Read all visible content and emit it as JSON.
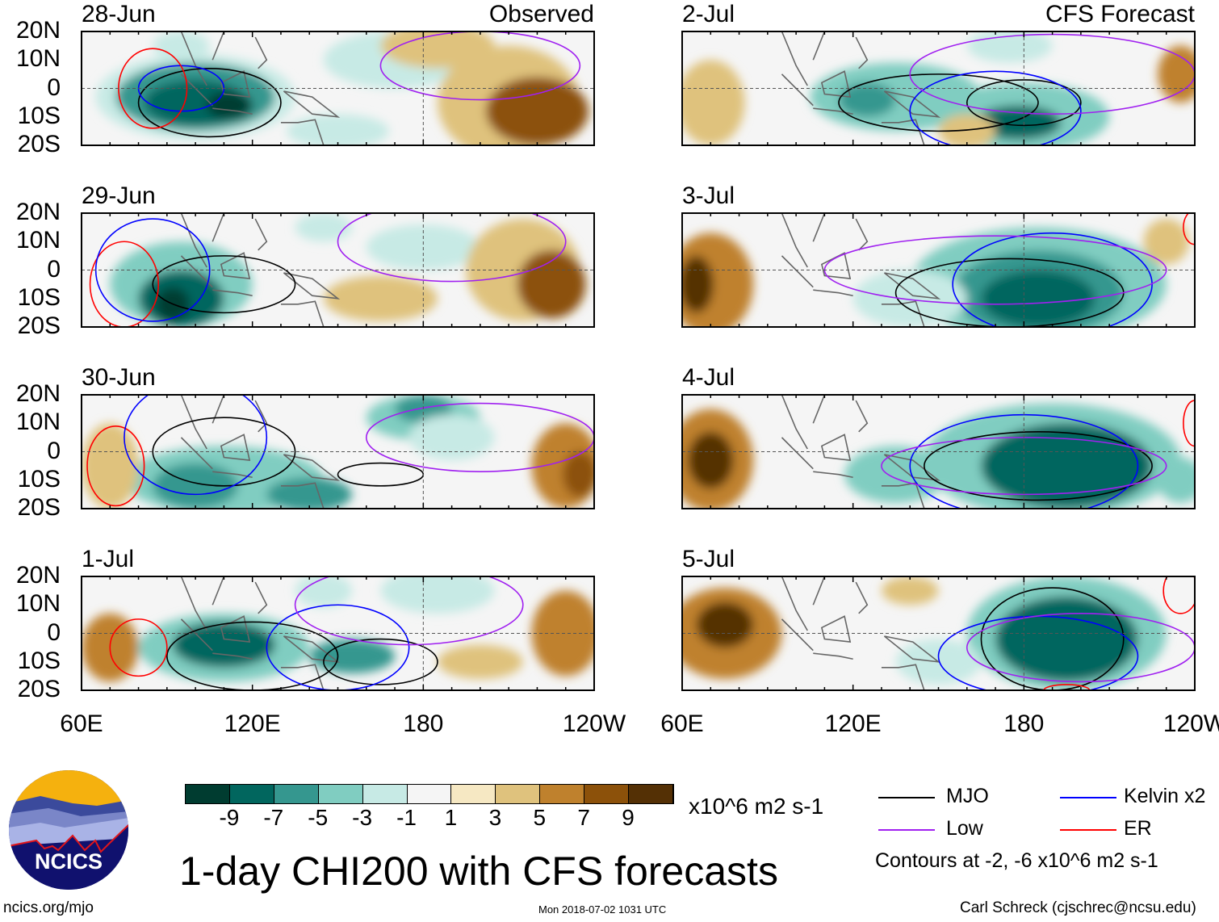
{
  "chart_data": {
    "type": "heatmap",
    "title": "1-day CHI200 with CFS forecasts",
    "units": "x10^6 m2 s-1",
    "xlim_deg_east": [
      60,
      240
    ],
    "ylim_deg_north": [
      -20,
      20
    ],
    "x_ticks": [
      "60E",
      "120E",
      "180",
      "120W"
    ],
    "y_ticks": [
      "20N",
      "10N",
      "0",
      "10S",
      "20S"
    ],
    "colorbar": {
      "levels": [
        "-9",
        "-7",
        "-5",
        "-3",
        "-1",
        "1",
        "3",
        "5",
        "7",
        "9"
      ],
      "colors": [
        "#003c30",
        "#01665e",
        "#35978f",
        "#80cdc1",
        "#c7eae5",
        "#f5f5f5",
        "#f6e8c3",
        "#dfc27d",
        "#bf812d",
        "#8c510a",
        "#543005"
      ]
    },
    "contour_colors": {
      "MJO": "#000000",
      "Low": "#a020f0",
      "Kelvin": "#0000ff",
      "ER": "#ff0000"
    },
    "panels": [
      {
        "date": "28-Jun",
        "label": "Observed",
        "col": 0,
        "row": 0,
        "anoms": [
          [
            100,
            -3,
            35,
            15,
            -3
          ],
          [
            100,
            -3,
            28,
            12,
            -6
          ],
          [
            100,
            -5,
            18,
            8,
            -8
          ],
          [
            112,
            -6,
            8,
            5,
            -10
          ],
          [
            170,
            10,
            25,
            10,
            -2
          ],
          [
            210,
            -5,
            25,
            20,
            4
          ],
          [
            220,
            -8,
            18,
            12,
            7
          ],
          [
            185,
            15,
            20,
            8,
            3
          ],
          [
            150,
            -15,
            18,
            6,
            -2
          ],
          [
            95,
            15,
            10,
            5,
            -3
          ]
        ],
        "contours": [
          [
            "MJO",
            105,
            -5,
            25,
            12
          ],
          [
            "Kelvin",
            95,
            0,
            15,
            8
          ],
          [
            "Low",
            200,
            8,
            35,
            12
          ],
          [
            "ER",
            85,
            0,
            12,
            14
          ]
        ]
      },
      {
        "date": "29-Jun",
        "label": "",
        "col": 0,
        "row": 1,
        "anoms": [
          [
            95,
            -5,
            25,
            15,
            -4
          ],
          [
            95,
            -10,
            15,
            10,
            -8
          ],
          [
            92,
            -12,
            6,
            6,
            -10
          ],
          [
            180,
            8,
            20,
            8,
            -3
          ],
          [
            215,
            0,
            20,
            18,
            4
          ],
          [
            225,
            -5,
            12,
            12,
            7
          ],
          [
            165,
            -10,
            20,
            8,
            3
          ],
          [
            145,
            15,
            10,
            5,
            -3
          ]
        ],
        "contours": [
          [
            "MJO",
            110,
            -5,
            25,
            10
          ],
          [
            "Low",
            190,
            10,
            40,
            14
          ],
          [
            "ER",
            75,
            -5,
            12,
            15
          ],
          [
            "Kelvin",
            85,
            0,
            20,
            18
          ]
        ]
      },
      {
        "date": "30-Jun",
        "label": "",
        "col": 0,
        "row": 2,
        "anoms": [
          [
            110,
            -10,
            35,
            12,
            -4
          ],
          [
            100,
            -12,
            15,
            8,
            -6
          ],
          [
            140,
            -15,
            15,
            6,
            -6
          ],
          [
            180,
            12,
            20,
            8,
            -4
          ],
          [
            180,
            15,
            10,
            5,
            -6
          ],
          [
            230,
            -5,
            12,
            15,
            6
          ],
          [
            235,
            -8,
            6,
            8,
            8
          ],
          [
            70,
            -5,
            10,
            15,
            3
          ],
          [
            190,
            5,
            15,
            8,
            -2
          ]
        ],
        "contours": [
          [
            "MJO",
            110,
            0,
            25,
            12
          ],
          [
            "MJO",
            165,
            -8,
            15,
            4
          ],
          [
            "Low",
            200,
            5,
            40,
            12
          ],
          [
            "ER",
            72,
            -5,
            10,
            14
          ],
          [
            "Kelvin",
            100,
            5,
            25,
            20
          ]
        ]
      },
      {
        "date": "1-Jul",
        "label": "",
        "col": 0,
        "row": 3,
        "anoms": [
          [
            110,
            -5,
            30,
            12,
            -5
          ],
          [
            110,
            -4,
            18,
            8,
            -8
          ],
          [
            155,
            -8,
            15,
            6,
            -6
          ],
          [
            70,
            -5,
            10,
            12,
            5
          ],
          [
            230,
            0,
            12,
            15,
            5
          ],
          [
            185,
            15,
            20,
            8,
            -2
          ],
          [
            145,
            15,
            10,
            6,
            -3
          ],
          [
            200,
            -10,
            15,
            6,
            3
          ]
        ],
        "contours": [
          [
            "MJO",
            120,
            -8,
            30,
            12
          ],
          [
            "MJO",
            165,
            -10,
            20,
            8
          ],
          [
            "Kelvin",
            150,
            -5,
            25,
            15
          ],
          [
            "ER",
            80,
            -5,
            10,
            10
          ],
          [
            "Low",
            175,
            10,
            40,
            14
          ]
        ]
      },
      {
        "date": "2-Jul",
        "label": "CFS Forecast",
        "col": 1,
        "row": 0,
        "anoms": [
          [
            135,
            -3,
            30,
            12,
            -4
          ],
          [
            125,
            -4,
            10,
            6,
            -6
          ],
          [
            180,
            -10,
            30,
            12,
            -4
          ],
          [
            178,
            -12,
            15,
            6,
            -8
          ],
          [
            70,
            -5,
            12,
            15,
            4
          ],
          [
            235,
            5,
            8,
            10,
            5
          ],
          [
            160,
            -15,
            10,
            6,
            3
          ],
          [
            175,
            15,
            15,
            6,
            -3
          ]
        ],
        "contours": [
          [
            "MJO",
            150,
            -5,
            35,
            10
          ],
          [
            "MJO",
            180,
            -5,
            20,
            8
          ],
          [
            "Kelvin",
            170,
            -8,
            30,
            14
          ],
          [
            "Low",
            190,
            5,
            50,
            14
          ]
        ]
      },
      {
        "date": "3-Jul",
        "label": "",
        "col": 1,
        "row": 1,
        "anoms": [
          [
            185,
            -5,
            45,
            20,
            -5
          ],
          [
            185,
            -8,
            30,
            15,
            -7
          ],
          [
            185,
            -10,
            20,
            10,
            -9
          ],
          [
            70,
            -5,
            15,
            18,
            6
          ],
          [
            65,
            -5,
            6,
            10,
            9
          ],
          [
            140,
            -10,
            20,
            10,
            -3
          ],
          [
            230,
            10,
            8,
            8,
            3
          ]
        ],
        "contours": [
          [
            "MJO",
            175,
            -8,
            40,
            12
          ],
          [
            "Kelvin",
            190,
            -5,
            35,
            18
          ],
          [
            "Low",
            170,
            0,
            60,
            12
          ],
          [
            "ER",
            240,
            15,
            4,
            6
          ]
        ]
      },
      {
        "date": "4-Jul",
        "label": "",
        "col": 1,
        "row": 2,
        "anoms": [
          [
            190,
            -3,
            45,
            20,
            -5
          ],
          [
            195,
            -5,
            30,
            15,
            -8
          ],
          [
            195,
            -8,
            18,
            10,
            -9
          ],
          [
            70,
            -3,
            15,
            18,
            6
          ],
          [
            70,
            -3,
            8,
            10,
            9
          ],
          [
            135,
            -8,
            18,
            10,
            -5
          ],
          [
            235,
            -10,
            8,
            8,
            -5
          ]
        ],
        "contours": [
          [
            "MJO",
            185,
            -5,
            40,
            12
          ],
          [
            "Kelvin",
            180,
            -5,
            40,
            18
          ],
          [
            "Low",
            180,
            -5,
            50,
            10
          ],
          [
            "ER",
            240,
            10,
            4,
            8
          ]
        ]
      },
      {
        "date": "5-Jul",
        "label": "",
        "col": 1,
        "row": 3,
        "anoms": [
          [
            195,
            0,
            35,
            20,
            -5
          ],
          [
            195,
            -2,
            25,
            15,
            -8
          ],
          [
            190,
            -5,
            15,
            10,
            -9
          ],
          [
            75,
            0,
            20,
            16,
            6
          ],
          [
            75,
            3,
            10,
            8,
            9
          ],
          [
            150,
            -10,
            15,
            8,
            -3
          ],
          [
            140,
            15,
            10,
            5,
            3
          ]
        ],
        "contours": [
          [
            "MJO",
            190,
            -2,
            25,
            18
          ],
          [
            "Kelvin",
            185,
            -8,
            35,
            14
          ],
          [
            "Low",
            200,
            -5,
            40,
            12
          ],
          [
            "ER",
            235,
            15,
            6,
            8
          ],
          [
            "ER",
            195,
            -20,
            8,
            2
          ]
        ]
      }
    ]
  },
  "legend": {
    "items": [
      {
        "label": "MJO",
        "color": "#000000"
      },
      {
        "label": "Kelvin x2",
        "color": "#0000ff"
      },
      {
        "label": "Low",
        "color": "#a020f0"
      },
      {
        "label": "ER",
        "color": "#ff0000"
      }
    ],
    "contours_note": "Contours at -2, -6 x10^6 m2 s-1"
  },
  "footer": {
    "logo_text": "NCICS",
    "url": "ncics.org/mjo",
    "timestamp": "Mon 2018-07-02 1031 UTC",
    "author": "Carl Schreck (cjschrec@ncsu.edu)"
  }
}
